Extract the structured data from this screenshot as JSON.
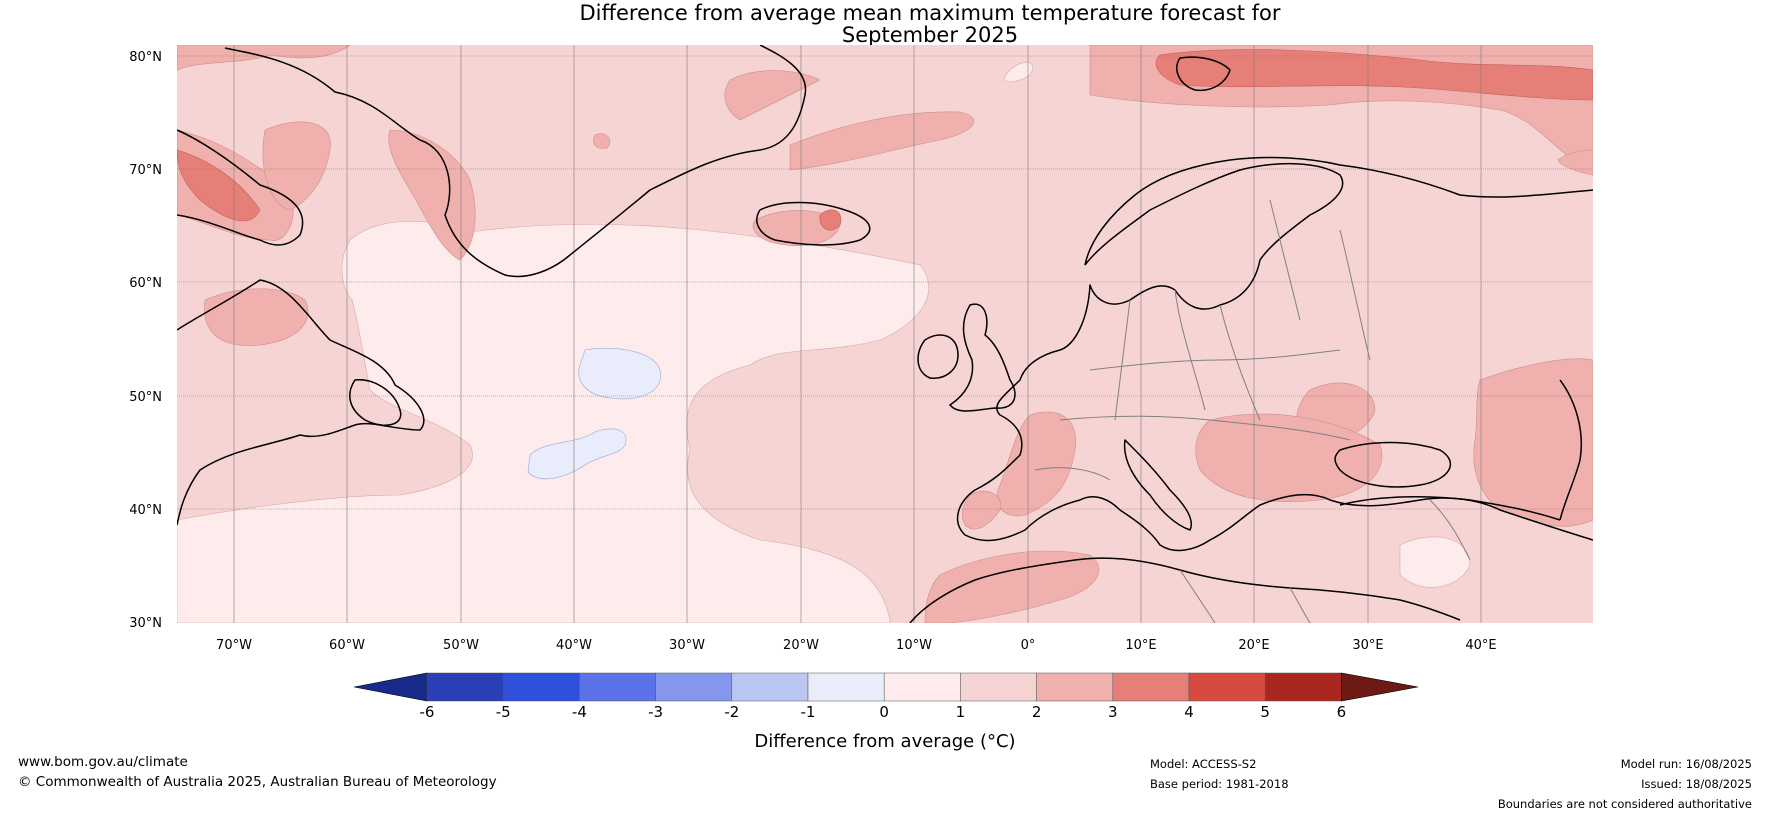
{
  "title": {
    "line1": "Difference from average mean maximum temperature forecast for",
    "line2": "September 2025"
  },
  "map": {
    "lat_labels": [
      "80°N",
      "70°N",
      "60°N",
      "50°N",
      "40°N",
      "30°N"
    ],
    "lon_labels": [
      "70°W",
      "60°W",
      "50°W",
      "40°W",
      "30°W",
      "20°W",
      "10°W",
      "0°",
      "10°E",
      "20°E",
      "30°E",
      "40°E"
    ],
    "region": "North Atlantic and Europe",
    "extent": {
      "lon": [
        -75,
        50
      ],
      "lat": [
        30,
        81
      ]
    }
  },
  "colorbar": {
    "ticks": [
      "-6",
      "-5",
      "-4",
      "-3",
      "-2",
      "-1",
      "0",
      "1",
      "2",
      "3",
      "4",
      "5",
      "6"
    ],
    "colors": [
      "#182a8c",
      "#2a3fb6",
      "#2f4fdd",
      "#5b73e6",
      "#8497ec",
      "#bcc6f3",
      "#e8ecfb",
      "#fdeceb",
      "#f6d4d3",
      "#efb0ae",
      "#e57f78",
      "#d74a40",
      "#a8271e",
      "#6e1a14"
    ],
    "label": "Difference from average (°C)"
  },
  "footer": {
    "url": "www.bom.gov.au/climate",
    "copyright": "© Commonwealth of Australia 2025, Australian Bureau of Meteorology",
    "model": "Model: ACCESS-S2",
    "base_period": "Base period: 1981-2018",
    "model_run": "Model run: 16/08/2025",
    "issued": "Issued: 18/08/2025",
    "disclaimer": "Boundaries are not considered authoritative"
  }
}
